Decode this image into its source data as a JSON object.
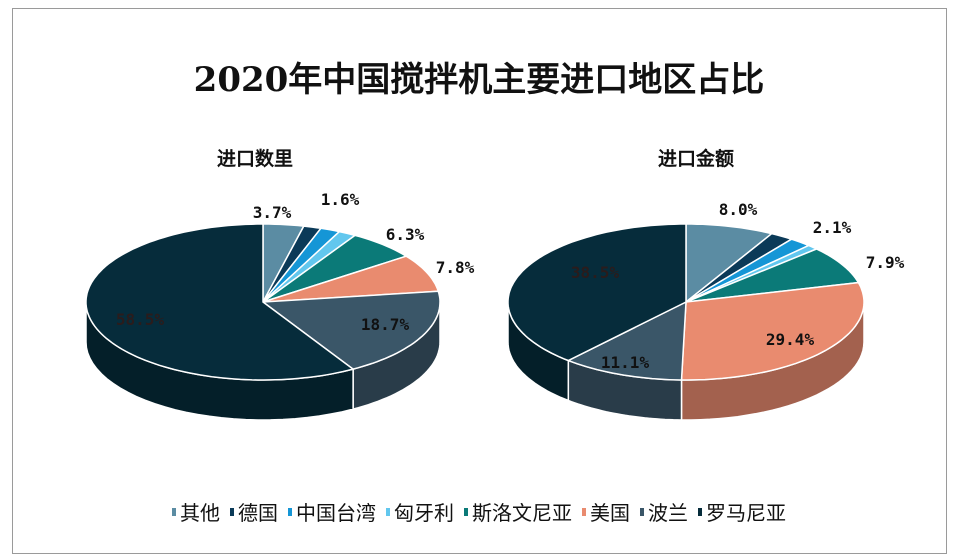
{
  "title": "2020年中国搅拌机主要进口地区占比",
  "chart_data": [
    {
      "type": "pie",
      "style": "3d",
      "title": "进口数里",
      "categories": [
        "其他",
        "德国",
        "中国台湾",
        "匈牙利",
        "斯洛文尼亚",
        "美国",
        "波兰",
        "罗马尼亚"
      ],
      "values": [
        3.7,
        1.6,
        1.8,
        1.6,
        6.3,
        7.8,
        18.7,
        58.5
      ],
      "labels": [
        "3.7%",
        "1.6%",
        "",
        "",
        "6.3%",
        "7.8%",
        "18.7%",
        "58.5%"
      ]
    },
    {
      "type": "pie",
      "style": "3d",
      "title": "进口金额",
      "categories": [
        "其他",
        "德国",
        "中国台湾",
        "匈牙利",
        "斯洛文尼亚",
        "美国",
        "波兰",
        "罗马尼亚"
      ],
      "values": [
        8.0,
        2.1,
        2.0,
        1.0,
        7.9,
        29.4,
        11.1,
        38.5
      ],
      "labels": [
        "8.0%",
        "2.1%",
        "",
        "",
        "7.9%",
        "29.4%",
        "11.1%",
        "38.5%"
      ]
    }
  ],
  "legend": [
    {
      "name": "其他",
      "color": "#5b8ca3"
    },
    {
      "name": "德国",
      "color": "#0b3a58"
    },
    {
      "name": "中国台湾",
      "color": "#1596d6"
    },
    {
      "name": "匈牙利",
      "color": "#62c7ee"
    },
    {
      "name": "斯洛文尼亚",
      "color": "#0b7a78"
    },
    {
      "name": "美国",
      "color": "#e98b6f"
    },
    {
      "name": "波兰",
      "color": "#3a5668"
    },
    {
      "name": "罗马尼亚",
      "color": "#062c3b"
    }
  ],
  "legend_position": "bottom"
}
